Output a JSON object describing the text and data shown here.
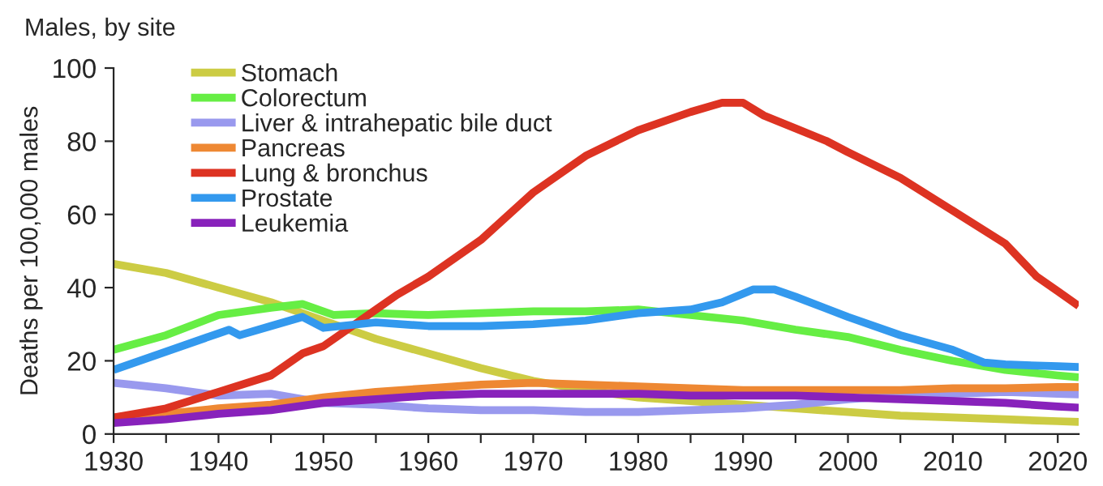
{
  "chart_data": {
    "type": "line",
    "title": "Males, by site",
    "ylabel": "Deaths per 100,000 males",
    "x": [
      1930,
      1935,
      1940,
      1945,
      1950,
      1955,
      1960,
      1965,
      1970,
      1975,
      1980,
      1985,
      1990,
      1995,
      2000,
      2005,
      2010,
      2015,
      2020,
      2022
    ],
    "xlim": [
      1930,
      2022
    ],
    "xticks": [
      1930,
      {
        "value": 1935,
        "label": null
      },
      1940,
      {
        "value": 1945,
        "label": null
      },
      1950,
      {
        "value": 1955,
        "label": null
      },
      1960,
      {
        "value": 1965,
        "label": null
      },
      1970,
      {
        "value": 1975,
        "label": null
      },
      1980,
      {
        "value": 1985,
        "label": null
      },
      1990,
      {
        "value": 1995,
        "label": null
      },
      2000,
      {
        "value": 2005,
        "label": null
      },
      2010,
      {
        "value": 2015,
        "label": null
      },
      2020
    ],
    "ylim": [
      0,
      100
    ],
    "yticks": [
      0,
      20,
      40,
      60,
      80,
      100
    ],
    "grid": false,
    "legend": "top left",
    "marker": "none",
    "line_style": "solid",
    "series": [
      {
        "name": "Stomach",
        "color": "#cccc44",
        "values": [
          46.5,
          44,
          40,
          36,
          31,
          26,
          22,
          18,
          14.5,
          12,
          10,
          9,
          8,
          7,
          6,
          5,
          4.5,
          4,
          3.5,
          3.3
        ]
      },
      {
        "name": "Colorectum",
        "color": "#66ee44",
        "x": [
          1930,
          1935,
          1940,
          1945,
          1948,
          1951,
          1955,
          1960,
          1965,
          1970,
          1975,
          1980,
          1985,
          1990,
          1995,
          2000,
          2005,
          2010,
          2015,
          2020,
          2022
        ],
        "values": [
          23,
          27,
          32.5,
          34.5,
          35.5,
          32.5,
          33,
          32.5,
          33,
          33.5,
          33.5,
          34,
          32.5,
          31,
          28.5,
          26.5,
          23,
          20,
          17.5,
          16,
          15.5
        ]
      },
      {
        "name": "Liver & intrahepatic bile duct",
        "color": "#9999ee",
        "values": [
          14,
          12.5,
          10.5,
          11,
          8.5,
          8,
          7,
          6.5,
          6.5,
          6,
          6,
          6.5,
          7,
          8,
          9.5,
          10.5,
          11,
          11.5,
          11,
          10.8
        ]
      },
      {
        "name": "Pancreas",
        "color": "#ee8833",
        "values": [
          4.5,
          5.5,
          7,
          8,
          10,
          11.5,
          12.5,
          13.5,
          14,
          13.5,
          13,
          12.5,
          12,
          12,
          12,
          12,
          12.5,
          12.5,
          12.8,
          12.8
        ]
      },
      {
        "name": "Lung & bronchus",
        "color": "#dd3322",
        "x": [
          1930,
          1935,
          1940,
          1945,
          1948,
          1950,
          1955,
          1957,
          1960,
          1965,
          1970,
          1975,
          1980,
          1985,
          1988,
          1990,
          1992,
          1995,
          1998,
          2000,
          2005,
          2010,
          2015,
          2018,
          2020,
          2022
        ],
        "values": [
          4.5,
          7,
          11.5,
          16,
          22,
          24,
          34,
          38,
          43,
          53,
          66,
          76,
          83,
          88,
          90.5,
          90.5,
          87,
          83.5,
          80,
          77,
          70,
          61,
          52,
          43,
          39,
          35
        ]
      },
      {
        "name": "Prostate",
        "color": "#3399ee",
        "x": [
          1930,
          1935,
          1940,
          1941,
          1942,
          1945,
          1948,
          1950,
          1955,
          1960,
          1965,
          1970,
          1975,
          1980,
          1985,
          1988,
          1991,
          1993,
          1995,
          2000,
          2005,
          2010,
          2013,
          2015,
          2020,
          2022
        ],
        "values": [
          17.5,
          22.5,
          27.5,
          28.5,
          27,
          29.5,
          32,
          29,
          30.5,
          29.5,
          29.5,
          30,
          31,
          33,
          34,
          36,
          39.5,
          39.5,
          37.5,
          32,
          27,
          23,
          19.5,
          19,
          18.5,
          18.3
        ]
      },
      {
        "name": "Leukemia",
        "color": "#8822bb",
        "values": [
          3,
          4,
          5.5,
          6.5,
          8.5,
          9.5,
          10.5,
          11,
          11,
          11,
          11,
          10.5,
          10.5,
          10.5,
          10,
          9.5,
          9,
          8.5,
          7.5,
          7.2
        ]
      }
    ]
  }
}
